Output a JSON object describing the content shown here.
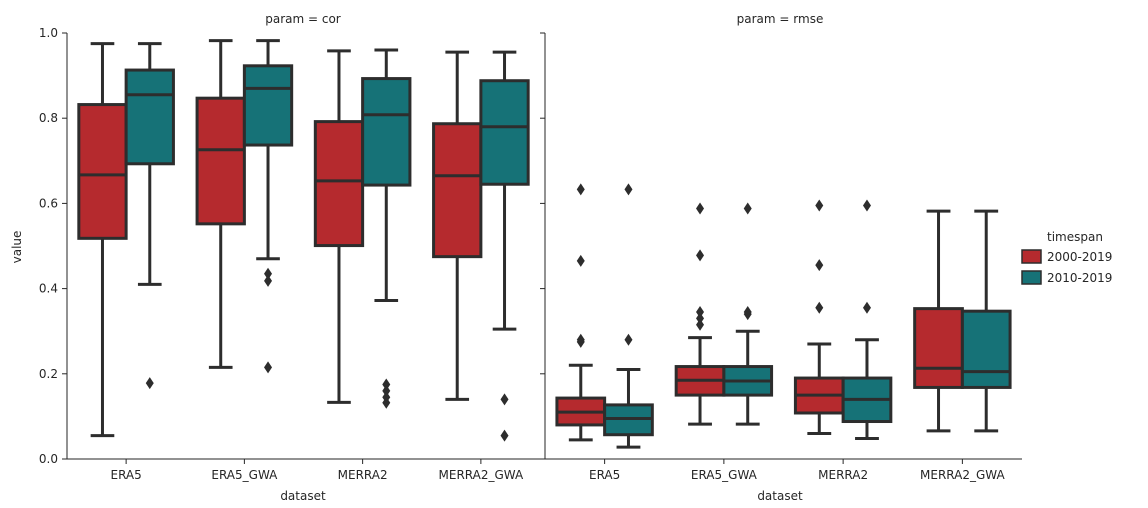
{
  "chart_data": {
    "type": "box",
    "ylabel": "value",
    "xlabel": "dataset",
    "ylim": [
      0.0,
      1.0
    ],
    "yticks": [
      "0.0",
      "0.2",
      "0.4",
      "0.6",
      "0.8",
      "1.0"
    ],
    "categories": [
      "ERA5",
      "ERA5_GWA",
      "MERRA2",
      "MERRA2_GWA"
    ],
    "legend": {
      "title": "timespan",
      "placement": "right",
      "entries": [
        {
          "label": "2000-2019",
          "color": "#b52a2e"
        },
        {
          "label": "2010-2019",
          "color": "#167277"
        }
      ]
    },
    "facets": [
      {
        "title": "param = cor",
        "series": [
          {
            "name": "2000-2019",
            "boxes": [
              {
                "whisker_low": 0.055,
                "q1": 0.518,
                "median": 0.667,
                "q3": 0.832,
                "whisker_high": 0.975,
                "outliers": []
              },
              {
                "whisker_low": 0.215,
                "q1": 0.552,
                "median": 0.726,
                "q3": 0.847,
                "whisker_high": 0.982,
                "outliers": []
              },
              {
                "whisker_low": 0.133,
                "q1": 0.501,
                "median": 0.653,
                "q3": 0.792,
                "whisker_high": 0.958,
                "outliers": []
              },
              {
                "whisker_low": 0.14,
                "q1": 0.475,
                "median": 0.665,
                "q3": 0.787,
                "whisker_high": 0.955,
                "outliers": []
              }
            ]
          },
          {
            "name": "2010-2019",
            "boxes": [
              {
                "whisker_low": 0.41,
                "q1": 0.693,
                "median": 0.855,
                "q3": 0.913,
                "whisker_high": 0.975,
                "outliers": [
                  0.178
                ]
              },
              {
                "whisker_low": 0.47,
                "q1": 0.737,
                "median": 0.87,
                "q3": 0.923,
                "whisker_high": 0.982,
                "outliers": [
                  0.435,
                  0.418,
                  0.215
                ]
              },
              {
                "whisker_low": 0.372,
                "q1": 0.643,
                "median": 0.808,
                "q3": 0.893,
                "whisker_high": 0.96,
                "outliers": [
                  0.175,
                  0.16,
                  0.145,
                  0.132
                ]
              },
              {
                "whisker_low": 0.305,
                "q1": 0.645,
                "median": 0.78,
                "q3": 0.888,
                "whisker_high": 0.955,
                "outliers": [
                  0.14,
                  0.055
                ]
              }
            ]
          }
        ]
      },
      {
        "title": "param = rmse",
        "series": [
          {
            "name": "2000-2019",
            "boxes": [
              {
                "whisker_low": 0.045,
                "q1": 0.08,
                "median": 0.11,
                "q3": 0.143,
                "whisker_high": 0.22,
                "outliers": [
                  0.28,
                  0.275,
                  0.465,
                  0.633
                ]
              },
              {
                "whisker_low": 0.082,
                "q1": 0.15,
                "median": 0.185,
                "q3": 0.217,
                "whisker_high": 0.285,
                "outliers": [
                  0.315,
                  0.33,
                  0.345,
                  0.478,
                  0.588
                ]
              },
              {
                "whisker_low": 0.06,
                "q1": 0.108,
                "median": 0.15,
                "q3": 0.19,
                "whisker_high": 0.27,
                "outliers": [
                  0.355,
                  0.455,
                  0.595
                ]
              },
              {
                "whisker_low": 0.066,
                "q1": 0.168,
                "median": 0.213,
                "q3": 0.353,
                "whisker_high": 0.582,
                "outliers": []
              }
            ]
          },
          {
            "name": "2010-2019",
            "boxes": [
              {
                "whisker_low": 0.028,
                "q1": 0.057,
                "median": 0.095,
                "q3": 0.127,
                "whisker_high": 0.21,
                "outliers": [
                  0.28,
                  0.633
                ]
              },
              {
                "whisker_low": 0.082,
                "q1": 0.15,
                "median": 0.183,
                "q3": 0.217,
                "whisker_high": 0.3,
                "outliers": [
                  0.34,
                  0.345,
                  0.588
                ]
              },
              {
                "whisker_low": 0.048,
                "q1": 0.088,
                "median": 0.14,
                "q3": 0.19,
                "whisker_high": 0.28,
                "outliers": [
                  0.355,
                  0.595
                ]
              },
              {
                "whisker_low": 0.066,
                "q1": 0.168,
                "median": 0.205,
                "q3": 0.347,
                "whisker_high": 0.582,
                "outliers": []
              }
            ]
          }
        ]
      }
    ]
  }
}
